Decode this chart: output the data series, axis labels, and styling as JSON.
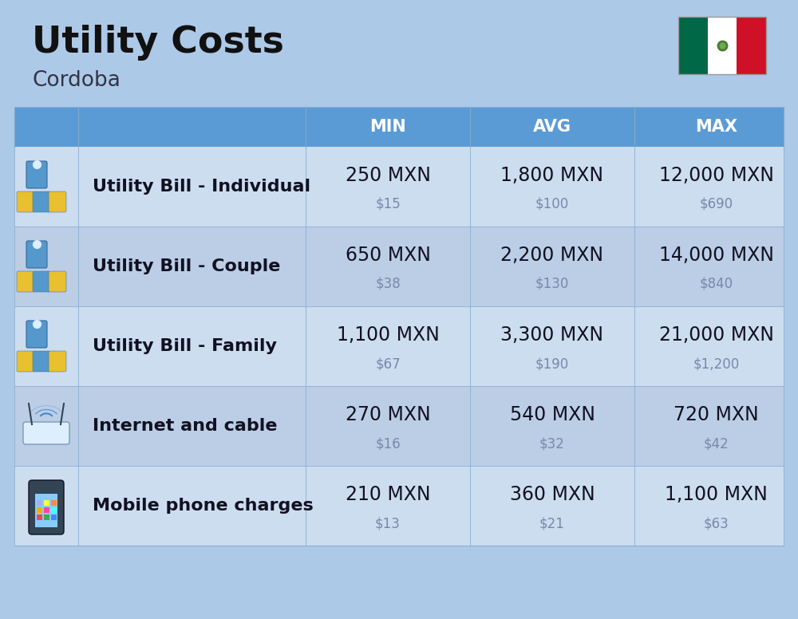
{
  "title": "Utility Costs",
  "subtitle": "Cordoba",
  "bg_color": "#adc9e8",
  "header_bg": "#5b9bd5",
  "header_text_color": "#ffffff",
  "row_bg_light": "#ccddf0",
  "row_bg_dark": "#bbcee6",
  "divider_color": "#8aafd4",
  "col_headers": [
    "MIN",
    "AVG",
    "MAX"
  ],
  "rows": [
    {
      "label": "Utility Bill - Individual",
      "min_mxn": "250 MXN",
      "min_usd": "$15",
      "avg_mxn": "1,800 MXN",
      "avg_usd": "$100",
      "max_mxn": "12,000 MXN",
      "max_usd": "$690"
    },
    {
      "label": "Utility Bill - Couple",
      "min_mxn": "650 MXN",
      "min_usd": "$38",
      "avg_mxn": "2,200 MXN",
      "avg_usd": "$130",
      "max_mxn": "14,000 MXN",
      "max_usd": "$840"
    },
    {
      "label": "Utility Bill - Family",
      "min_mxn": "1,100 MXN",
      "min_usd": "$67",
      "avg_mxn": "3,300 MXN",
      "avg_usd": "$190",
      "max_mxn": "21,000 MXN",
      "max_usd": "$1,200"
    },
    {
      "label": "Internet and cable",
      "min_mxn": "270 MXN",
      "min_usd": "$16",
      "avg_mxn": "540 MXN",
      "avg_usd": "$32",
      "max_mxn": "720 MXN",
      "max_usd": "$42"
    },
    {
      "label": "Mobile phone charges",
      "min_mxn": "210 MXN",
      "min_usd": "$13",
      "avg_mxn": "360 MXN",
      "avg_usd": "$21",
      "max_mxn": "1,100 MXN",
      "max_usd": "$63"
    }
  ],
  "flag_colors": [
    "#006847",
    "#ffffff",
    "#ce1126"
  ],
  "text_dark": "#111122",
  "text_gray": "#7788aa",
  "mxn_fontsize": 17,
  "usd_fontsize": 12,
  "label_fontsize": 16,
  "header_fontsize": 15
}
